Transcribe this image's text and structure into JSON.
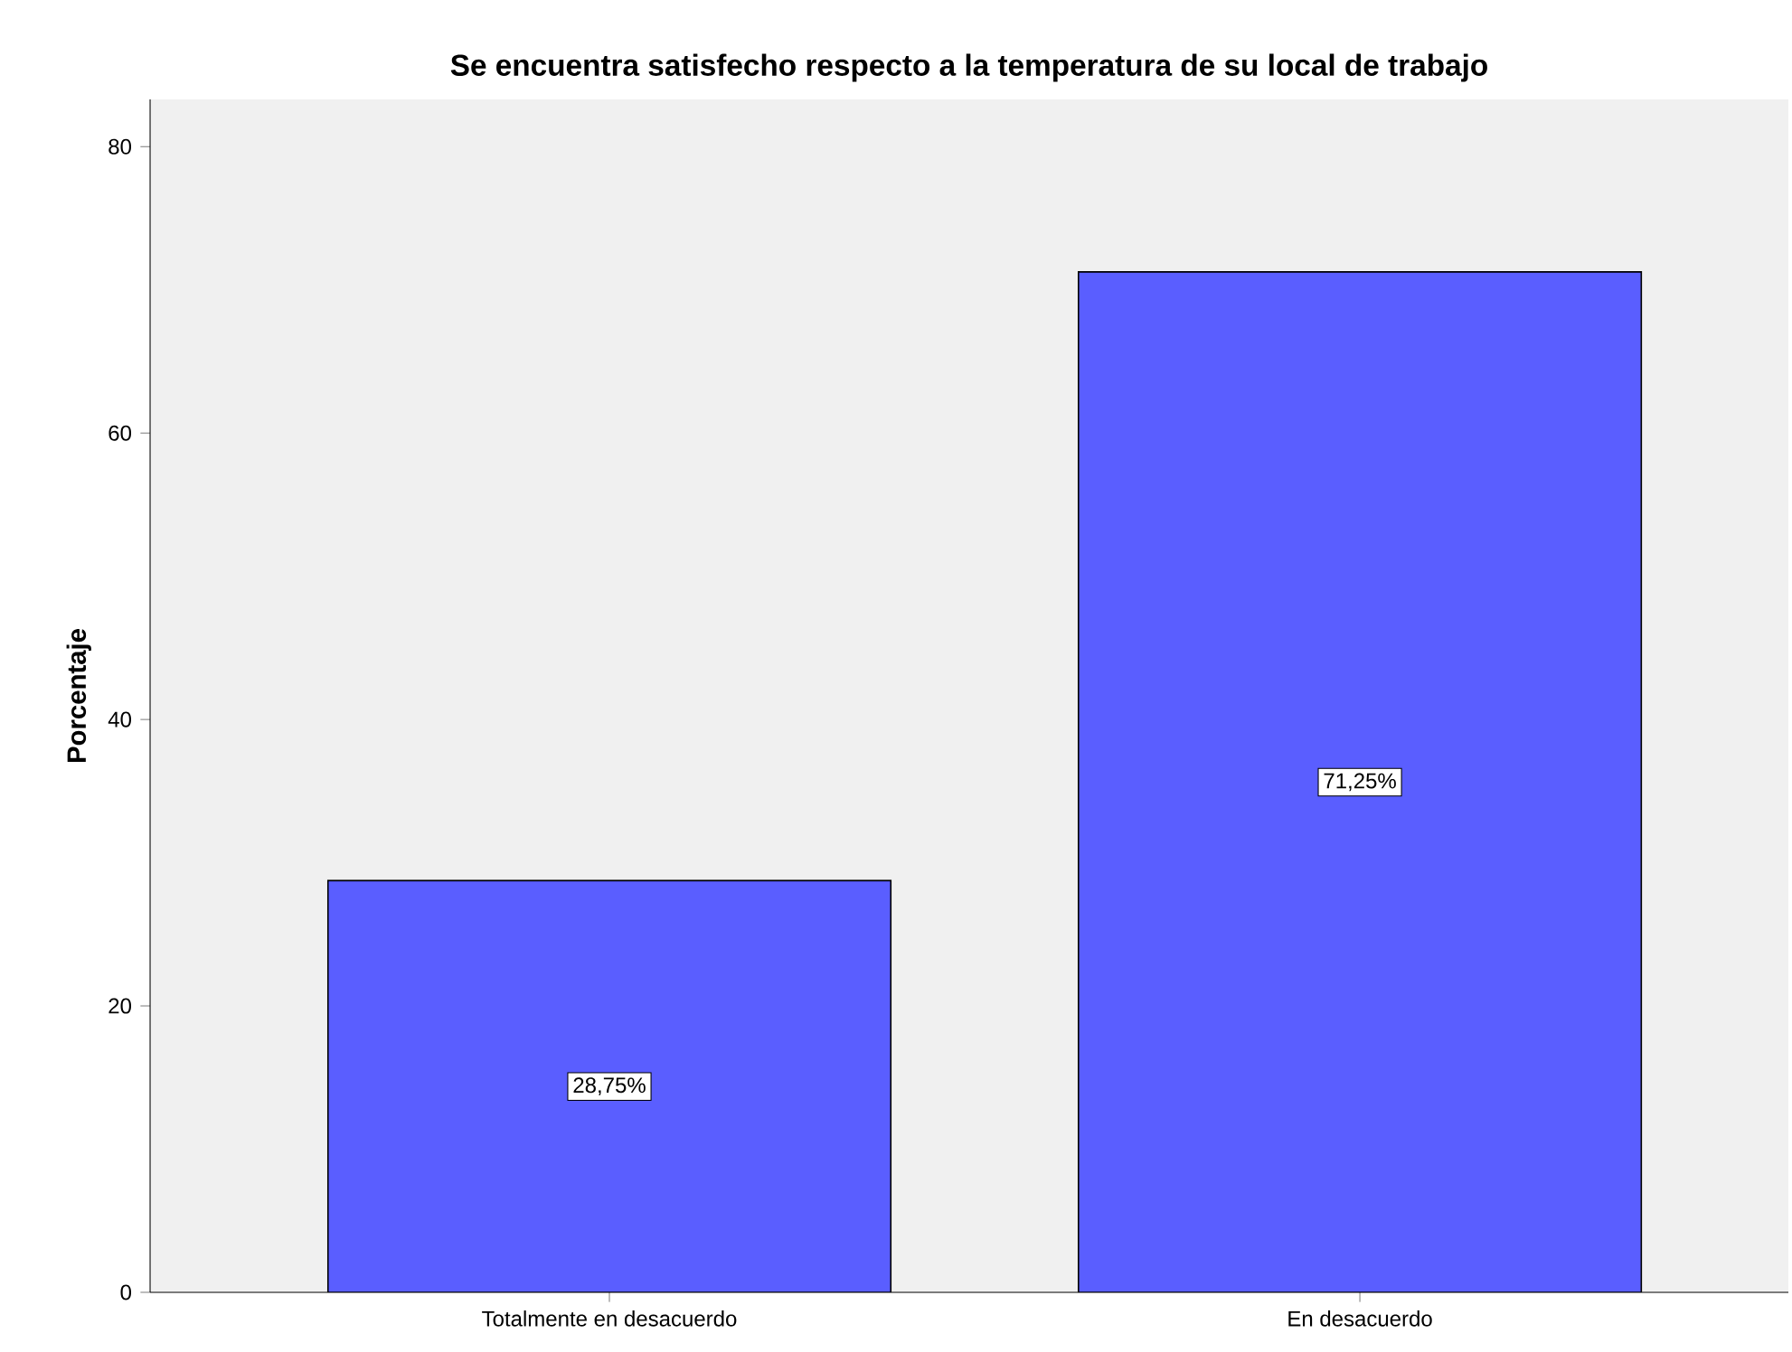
{
  "chart_data": {
    "type": "bar",
    "title": "Se encuentra satisfecho respecto a la temperatura de su local de trabajo",
    "ylabel": "Porcentaje",
    "categories": [
      "Totalmente en desacuerdo",
      "En desacuerdo"
    ],
    "values": [
      28.75,
      71.25
    ],
    "value_labels": [
      "28,75%",
      "71,25%"
    ],
    "color": "#5a5eff",
    "ylim": [
      0,
      83.3
    ],
    "yticks": [
      0,
      20,
      40,
      60,
      80
    ]
  }
}
